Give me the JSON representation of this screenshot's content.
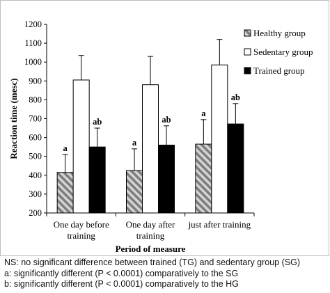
{
  "chart_data": {
    "type": "bar",
    "title": "",
    "xlabel": "Period of measure",
    "ylabel": "Reaction time (mesc)",
    "ylim": [
      200,
      1200
    ],
    "yticks": [
      200,
      300,
      400,
      500,
      600,
      700,
      800,
      900,
      1000,
      1100,
      1200
    ],
    "categories": [
      [
        "One day before",
        "training"
      ],
      [
        "One day after",
        "training"
      ],
      [
        "just after training"
      ]
    ],
    "series": [
      {
        "name": "Healthy group",
        "values": [
          415,
          425,
          565
        ],
        "errors": [
          95,
          115,
          130
        ],
        "labels": [
          "a",
          "a",
          "a"
        ],
        "color": "hatched-gray"
      },
      {
        "name": "Sedentary group",
        "values": [
          905,
          880,
          985
        ],
        "errors": [
          130,
          150,
          135
        ],
        "labels": [
          "",
          "",
          ""
        ],
        "color": "#ffffff"
      },
      {
        "name": "Trained group",
        "values": [
          550,
          560,
          672
        ],
        "errors": [
          100,
          102,
          108
        ],
        "labels": [
          "ab",
          "ab",
          "ab"
        ],
        "color": "#000000"
      }
    ],
    "grid": false,
    "legend_position": "top-right"
  },
  "notes": [
    "NS: no significant difference between trained (TG) and sedentary group (SG)",
    "a: significantly different (P < 0.0001) comparatively to the SG",
    "b: significantly different (P < 0.0001) comparatively to the HG"
  ]
}
